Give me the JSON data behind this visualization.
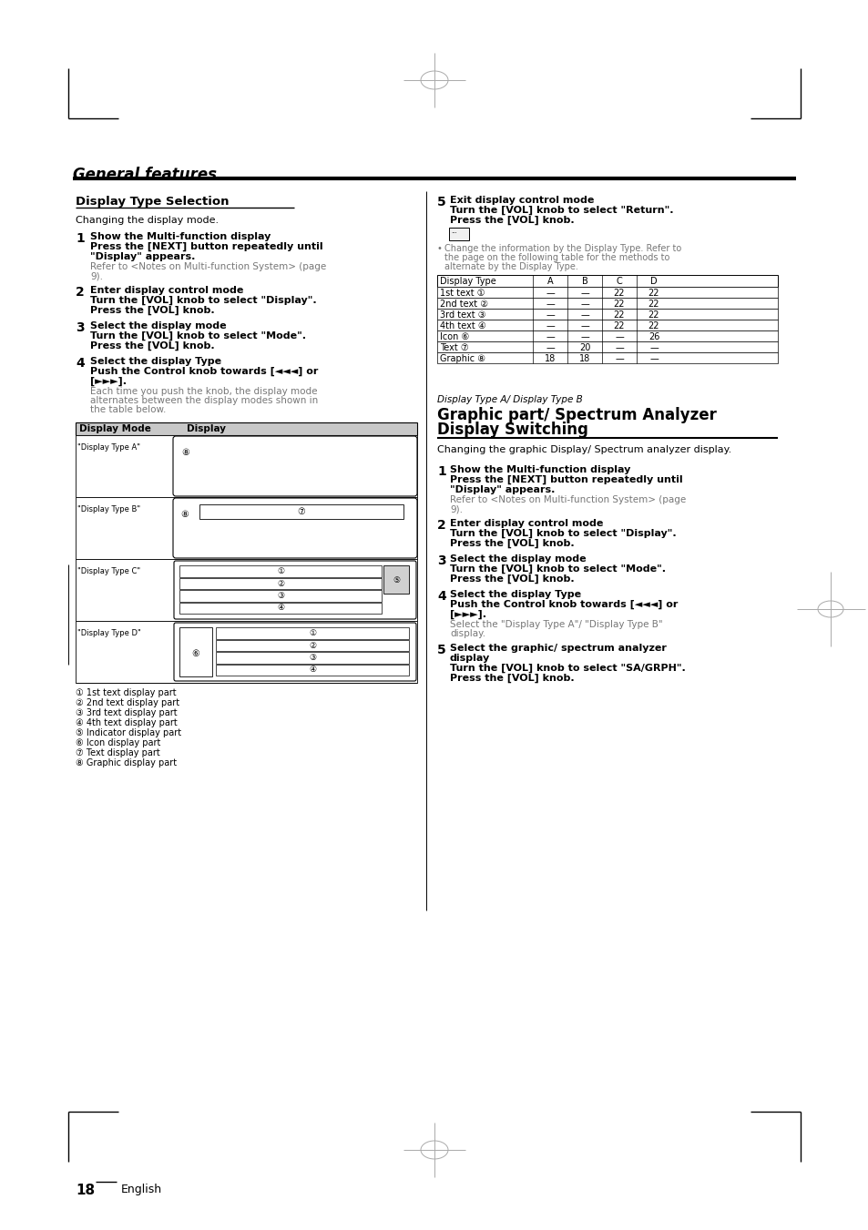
{
  "bg_color": "#ffffff",
  "text_color": "#000000",
  "gray_color": "#777777",
  "header_gray": "#c8c8c8",
  "page_title": "General features",
  "section1_title": "Display Type Selection",
  "section1_subtitle": "Changing the display mode.",
  "step5_head": "5",
  "step5_title": "Exit display control mode",
  "step5_body": "Turn the [VOL] knob to select \"Return\".\nPress the [VOL] knob.",
  "note_text": "Change the information by the Display Type. Refer to\nthe page on the following table for the methods to\nalternate by the Display Type.",
  "table_headers": [
    "Display Type",
    "A",
    "B",
    "C",
    "D"
  ],
  "table_rows": [
    [
      "1st text ①",
      "—",
      "—",
      "22",
      "22"
    ],
    [
      "2nd text ②",
      "—",
      "—",
      "22",
      "22"
    ],
    [
      "3rd text ③",
      "—",
      "—",
      "22",
      "22"
    ],
    [
      "4th text ④",
      "—",
      "—",
      "22",
      "22"
    ],
    [
      "Icon ⑥",
      "—",
      "—",
      "—",
      "26"
    ],
    [
      "Text ⑦",
      "—",
      "20",
      "—",
      "—"
    ],
    [
      "Graphic ⑧",
      "18",
      "18",
      "—",
      "—"
    ]
  ],
  "section2_pretitle": "Display Type A/ Display Type B",
  "section2_title": "Graphic part/ Spectrum Analyzer\nDisplay Switching",
  "section2_subtitle": "Changing the graphic Display/ Spectrum analyzer\ndisplay.",
  "steps_left": [
    {
      "num": "1",
      "title": "Show the Multi-function display",
      "body_bold": "Press the [NEXT] button repeatedly until\n\"Display\" appears.",
      "body_normal": "Refer to <Notes on Multi-function System> (page\n9)."
    },
    {
      "num": "2",
      "title": "Enter display control mode",
      "body_bold": "Turn the [VOL] knob to select \"Display\".\nPress the [VOL] knob.",
      "body_normal": ""
    },
    {
      "num": "3",
      "title": "Select the display mode",
      "body_bold": "Turn the [VOL] knob to select \"Mode\".\nPress the [VOL] knob.",
      "body_normal": ""
    },
    {
      "num": "4",
      "title": "Select the display Type",
      "body_bold": "Push the Control knob towards [◄◄◄] or\n[►►►].",
      "body_normal": "Each time you push the knob, the display mode\nalternates between the display modes shown in\nthe table below."
    }
  ],
  "steps_right": [
    {
      "num": "1",
      "title": "Show the Multi-function display",
      "body_bold": "Press the [NEXT] button repeatedly until\n\"Display\" appears.",
      "body_normal": "Refer to <Notes on Multi-function System> (page\n9)."
    },
    {
      "num": "2",
      "title": "Enter display control mode",
      "body_bold": "Turn the [VOL] knob to select \"Display\".\nPress the [VOL] knob.",
      "body_normal": ""
    },
    {
      "num": "3",
      "title": "Select the display mode",
      "body_bold": "Turn the [VOL] knob to select \"Mode\".\nPress the [VOL] knob.",
      "body_normal": ""
    },
    {
      "num": "4",
      "title": "Select the display Type",
      "body_bold": "Push the Control knob towards [◄◄◄] or\n[►►►].",
      "body_normal": "Select the \"Display Type A\"/ \"Display Type B\"\ndisplay."
    },
    {
      "num": "5",
      "title": "Select the graphic/ spectrum analyzer\ndisplay",
      "body_bold": "Turn the [VOL] knob to select \"SA/GRPH\".\nPress the [VOL] knob.",
      "body_normal": ""
    }
  ],
  "legend": [
    "① 1st text display part",
    "② 2nd text display part",
    "③ 3rd text display part",
    "④ 4th text display part",
    "⑤ Indicator display part",
    "⑥ Icon display part",
    "⑦ Text display part",
    "⑧ Graphic display part"
  ],
  "page_number": "18",
  "page_language": "English"
}
